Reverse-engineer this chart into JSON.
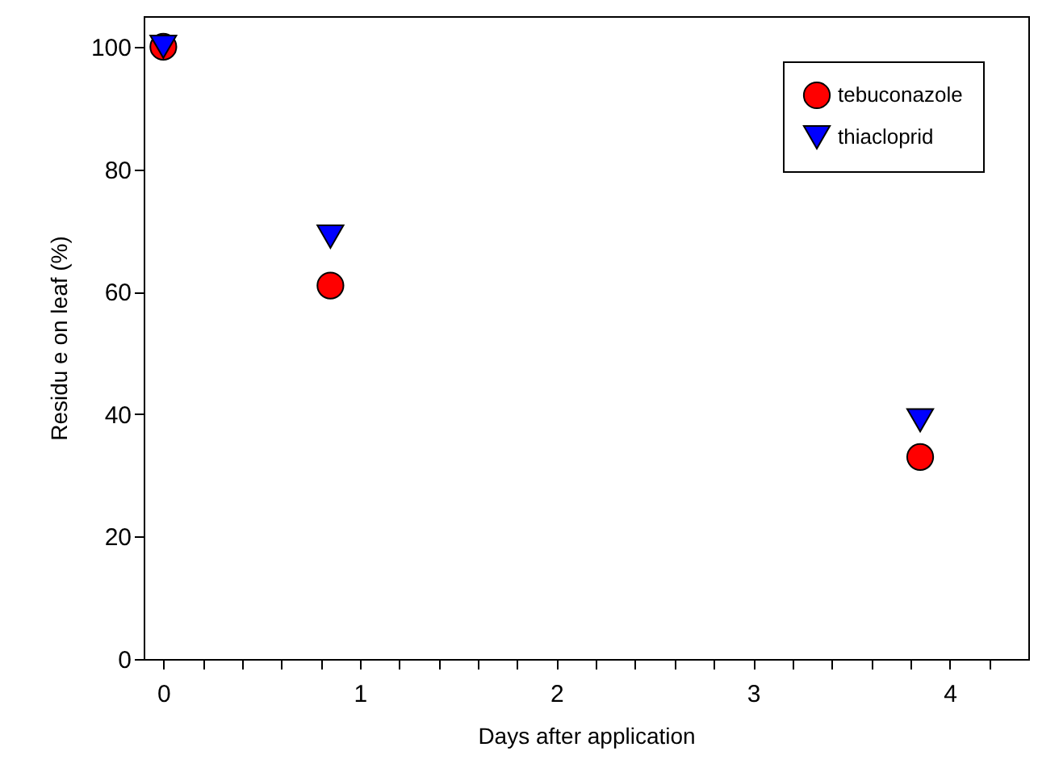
{
  "chart_data": {
    "type": "scatter",
    "xlabel": "Days after application",
    "ylabel": "Residu e on leaf (%)",
    "x": [
      0,
      0.85,
      3.85
    ],
    "series": [
      {
        "name": "tebuconazole",
        "color": "#ff0000",
        "marker": "circle",
        "values": [
          100,
          61,
          33
        ]
      },
      {
        "name": "thiacloprid",
        "color": "#0000ff",
        "marker": "triangle",
        "values": [
          100,
          69,
          39
        ]
      }
    ],
    "xlim": [
      -0.1,
      4.4
    ],
    "ylim": [
      0,
      105
    ],
    "xticks": [
      0,
      {
        "value": 0.2,
        "label": null
      },
      {
        "value": 0.4,
        "label": null
      },
      {
        "value": 0.6,
        "label": null
      },
      {
        "value": 0.8,
        "label": null
      },
      1,
      {
        "value": 1.2,
        "label": null
      },
      {
        "value": 1.4,
        "label": null
      },
      {
        "value": 1.6,
        "label": null
      },
      {
        "value": 1.8,
        "label": null
      },
      2,
      {
        "value": 2.2,
        "label": null
      },
      {
        "value": 2.4,
        "label": null
      },
      {
        "value": 2.6,
        "label": null
      },
      {
        "value": 2.8,
        "label": null
      },
      3,
      {
        "value": 3.2,
        "label": null
      },
      {
        "value": 3.4,
        "label": null
      },
      {
        "value": 3.6,
        "label": null
      },
      {
        "value": 3.8,
        "label": null
      },
      4,
      {
        "value": 4.2,
        "label": null
      }
    ],
    "yticks": [
      0,
      20,
      40,
      60,
      80,
      100
    ],
    "grid": false,
    "legend": "top right"
  }
}
